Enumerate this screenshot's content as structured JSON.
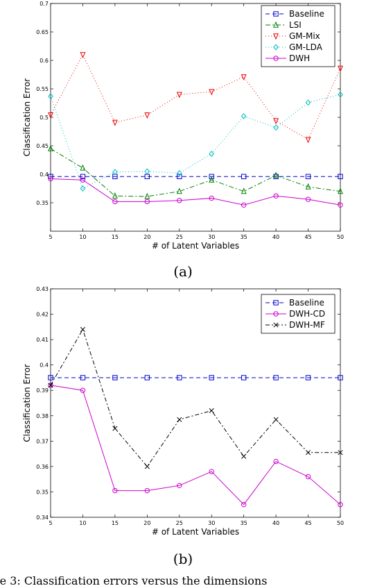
{
  "caption": "re 3: Classification errors versus the dimensions",
  "chart_data": [
    {
      "type": "line",
      "panel_label": "(a)",
      "xlabel": "# of Latent Variables",
      "ylabel": "Classification Error",
      "xlim": [
        5,
        50
      ],
      "ylim": [
        0.3,
        0.7
      ],
      "xticks": [
        "5",
        "10",
        "15",
        "20",
        "25",
        "30",
        "35",
        "40",
        "45",
        "50"
      ],
      "yticks": [
        "0.35",
        "0.4",
        "0.45",
        "0.5",
        "0.55",
        "0.6",
        "0.65",
        "0.7"
      ],
      "legend_position": "top-right",
      "grid": false,
      "x": [
        5,
        10,
        15,
        20,
        25,
        30,
        35,
        40,
        45,
        50
      ],
      "series": [
        {
          "name": "Baseline",
          "color": "#0000cc",
          "marker": "square",
          "dash": "6,4",
          "values": [
            0.396,
            0.396,
            0.396,
            0.396,
            0.396,
            0.396,
            0.396,
            0.396,
            0.396,
            0.396
          ]
        },
        {
          "name": "LSI",
          "color": "#008000",
          "marker": "triangle-up",
          "dash": "7,3,2,3",
          "values": [
            0.445,
            0.411,
            0.362,
            0.361,
            0.37,
            0.39,
            0.37,
            0.398,
            0.378,
            0.37
          ]
        },
        {
          "name": "GM-Mix",
          "color": "#ee0000",
          "marker": "triangle-down",
          "dash": "1,3",
          "values": [
            0.504,
            0.61,
            0.491,
            0.504,
            0.54,
            0.545,
            0.571,
            0.494,
            0.461,
            0.586
          ]
        },
        {
          "name": "GM-LDA",
          "color": "#00bcbc",
          "marker": "diamond",
          "dash": "1,3",
          "values": [
            0.537,
            0.375,
            0.404,
            0.405,
            0.402,
            0.436,
            0.502,
            0.482,
            0.526,
            0.54
          ]
        },
        {
          "name": "DWH",
          "color": "#cc00cc",
          "marker": "circle",
          "dash": "",
          "values": [
            0.392,
            0.39,
            0.352,
            0.352,
            0.354,
            0.358,
            0.346,
            0.362,
            0.356,
            0.346
          ]
        }
      ]
    },
    {
      "type": "line",
      "panel_label": "(b)",
      "xlabel": "# of Latent Variables",
      "ylabel": "Classification Error",
      "xlim": [
        5,
        50
      ],
      "ylim": [
        0.34,
        0.43
      ],
      "xticks": [
        "5",
        "10",
        "15",
        "20",
        "25",
        "30",
        "35",
        "40",
        "45",
        "50"
      ],
      "yticks": [
        "0.34",
        "0.35",
        "0.36",
        "0.37",
        "0.38",
        "0.39",
        "0.4",
        "0.41",
        "0.42",
        "0.43"
      ],
      "legend_position": "top-right",
      "grid": false,
      "x": [
        5,
        10,
        15,
        20,
        25,
        30,
        35,
        40,
        45,
        50
      ],
      "series": [
        {
          "name": "Baseline",
          "color": "#0000cc",
          "marker": "square",
          "dash": "6,4",
          "values": [
            0.395,
            0.395,
            0.395,
            0.395,
            0.395,
            0.395,
            0.395,
            0.395,
            0.395,
            0.395
          ]
        },
        {
          "name": "DWH-CD",
          "color": "#cc00cc",
          "marker": "circle",
          "dash": "",
          "values": [
            0.392,
            0.39,
            0.3505,
            0.3505,
            0.3525,
            0.358,
            0.345,
            0.362,
            0.356,
            0.345
          ]
        },
        {
          "name": "DWH-MF",
          "color": "#000000",
          "marker": "x",
          "dash": "6,3,2,3",
          "values": [
            0.392,
            0.414,
            0.375,
            0.36,
            0.3785,
            0.382,
            0.364,
            0.3785,
            0.3655,
            0.3655
          ]
        }
      ]
    }
  ]
}
